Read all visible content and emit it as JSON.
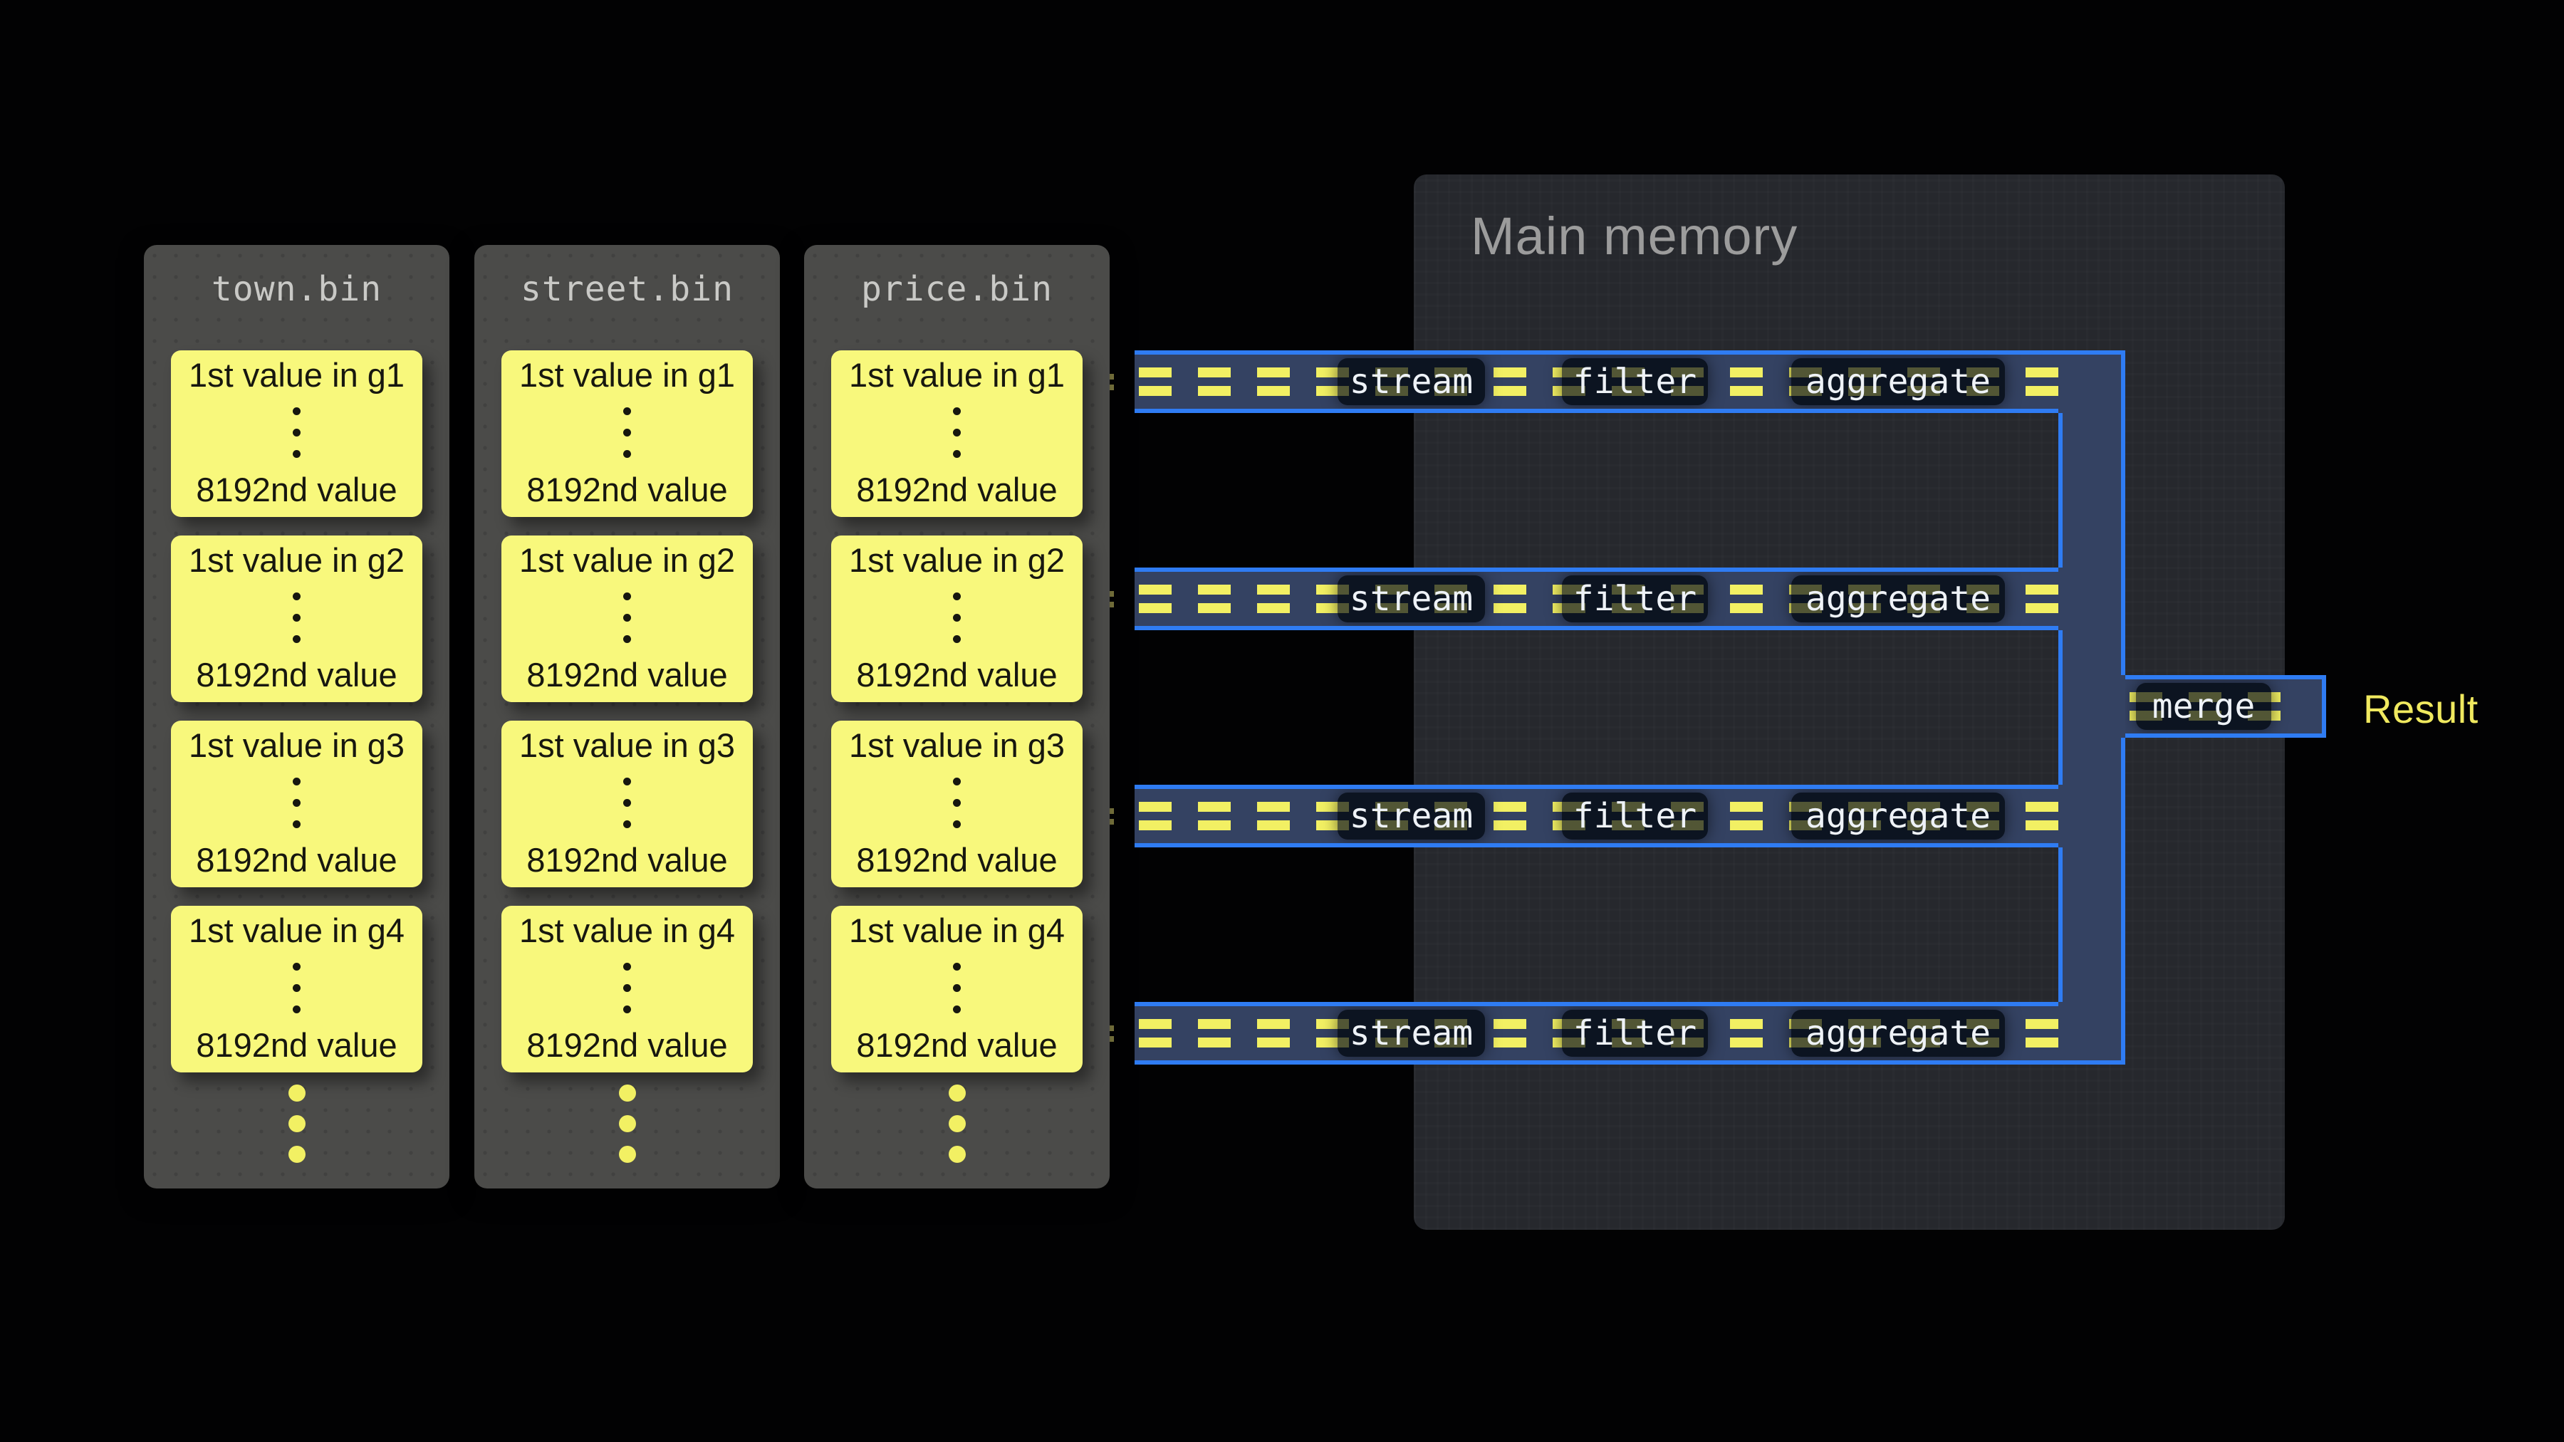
{
  "files": {
    "items": [
      {
        "name": "town.bin"
      },
      {
        "name": "street.bin"
      },
      {
        "name": "price.bin"
      }
    ],
    "cards": [
      {
        "first": "1st value in g1",
        "last": "8192nd value"
      },
      {
        "first": "1st value in g2",
        "last": "8192nd value"
      },
      {
        "first": "1st value in g3",
        "last": "8192nd value"
      },
      {
        "first": "1st value in g4",
        "last": "8192nd value"
      }
    ]
  },
  "memory": {
    "title": "Main memory"
  },
  "pipeline": {
    "lane_count": 4,
    "stages": [
      "stream",
      "filter",
      "aggregate"
    ],
    "merge_label": "merge",
    "result_label": "Result"
  },
  "colors": {
    "background": "#020203",
    "accent_blue": "#2f7cf3",
    "lane_fill": "#344262",
    "dash_yellow": "#f2f063",
    "box_dark": "#0c1421",
    "card_yellow": "#f8f87c",
    "container_gray": "#4b4b49",
    "memory_panel": "#26282d",
    "title_gray": "#9c9c9c",
    "result_yellow": "#f0e95f"
  }
}
